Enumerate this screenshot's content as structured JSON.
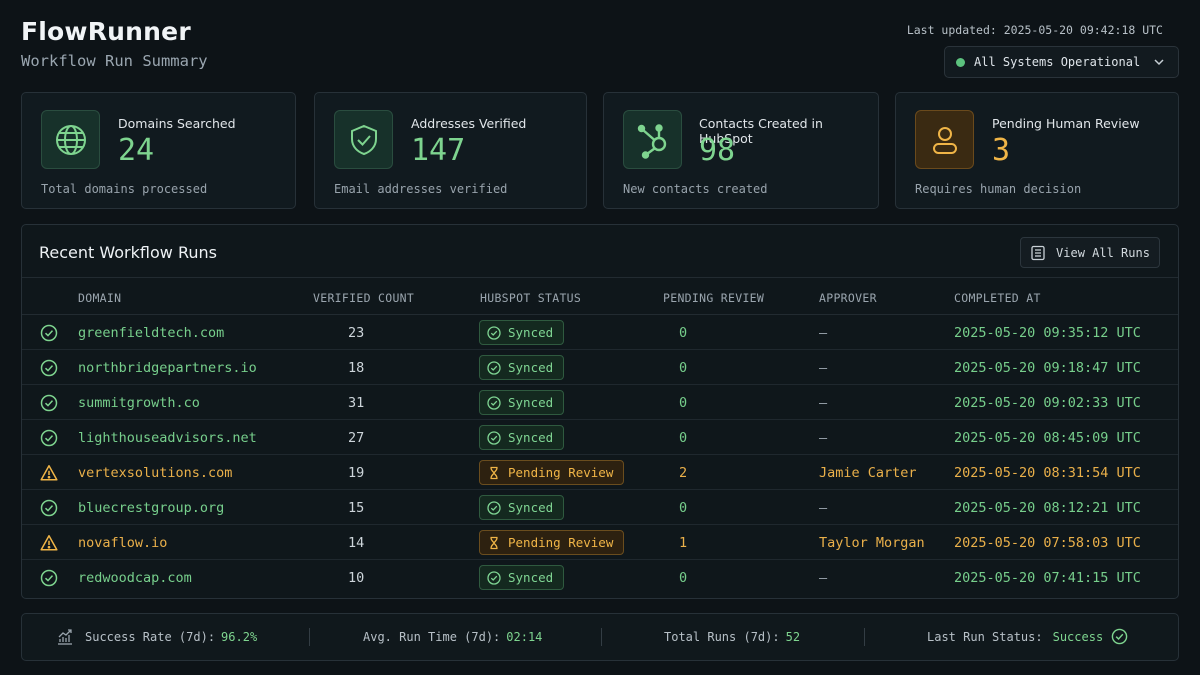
{
  "app": {
    "title": "FlowRunner",
    "subtitle": "Workflow Run Summary",
    "last_updated": "Last updated: 2025-05-20 09:42:18 UTC",
    "system_status": "All Systems Operational"
  },
  "cards": [
    {
      "label": "Domains Searched",
      "value": "24",
      "foot": "Total domains processed",
      "icon": "globe-icon"
    },
    {
      "label": "Addresses Verified",
      "value": "147",
      "foot": "Email addresses verified",
      "icon": "shield-check-icon"
    },
    {
      "label": "Contacts Created in HubSpot",
      "value": "98",
      "foot": "New contacts created",
      "icon": "hubspot-icon"
    },
    {
      "label": "Pending Human Review",
      "value": "3",
      "foot": "Requires human decision",
      "icon": "user-icon"
    }
  ],
  "table": {
    "title": "Recent Workflow Runs",
    "view_all": "View All Runs",
    "headers": {
      "domain": "DOMAIN",
      "verified_count": "VERIFIED COUNT",
      "hubspot_status": "HUBSPOT STATUS",
      "pending_review": "PENDING REVIEW",
      "approver": "APPROVER",
      "completed_at": "COMPLETED AT"
    },
    "rows": [
      {
        "domain": "greenfieldtech.com",
        "verified": "23",
        "status": "Synced",
        "pending": "0",
        "approver": "–",
        "completed": "2025-05-20 09:35:12 UTC"
      },
      {
        "domain": "northbridgepartners.io",
        "verified": "18",
        "status": "Synced",
        "pending": "0",
        "approver": "–",
        "completed": "2025-05-20 09:18:47 UTC"
      },
      {
        "domain": "summitgrowth.co",
        "verified": "31",
        "status": "Synced",
        "pending": "0",
        "approver": "–",
        "completed": "2025-05-20 09:02:33 UTC"
      },
      {
        "domain": "lighthouseadvisors.net",
        "verified": "27",
        "status": "Synced",
        "pending": "0",
        "approver": "–",
        "completed": "2025-05-20 08:45:09 UTC"
      },
      {
        "domain": "vertexsolutions.com",
        "verified": "19",
        "status": "Pending Review",
        "pending": "2",
        "approver": "Jamie Carter",
        "completed": "2025-05-20 08:31:54 UTC"
      },
      {
        "domain": "bluecrestgroup.org",
        "verified": "15",
        "status": "Synced",
        "pending": "0",
        "approver": "–",
        "completed": "2025-05-20 08:12:21 UTC"
      },
      {
        "domain": "novaflow.io",
        "verified": "14",
        "status": "Pending Review",
        "pending": "1",
        "approver": "Taylor Morgan",
        "completed": "2025-05-20 07:58:03 UTC"
      },
      {
        "domain": "redwoodcap.com",
        "verified": "10",
        "status": "Synced",
        "pending": "0",
        "approver": "–",
        "completed": "2025-05-20 07:41:15 UTC"
      }
    ]
  },
  "footer": {
    "success_rate_label": "Success Rate (7d):",
    "success_rate_value": "96.2%",
    "avg_run_label": "Avg. Run Time (7d):",
    "avg_run_value": "02:14",
    "total_runs_label": "Total Runs (7d):",
    "total_runs_value": "52",
    "last_status_label": "Last Run Status:",
    "last_status_value": "Success"
  },
  "colors": {
    "accent_green": "#7ed48f",
    "accent_amber": "#f0b547",
    "background": "#0d1317"
  }
}
